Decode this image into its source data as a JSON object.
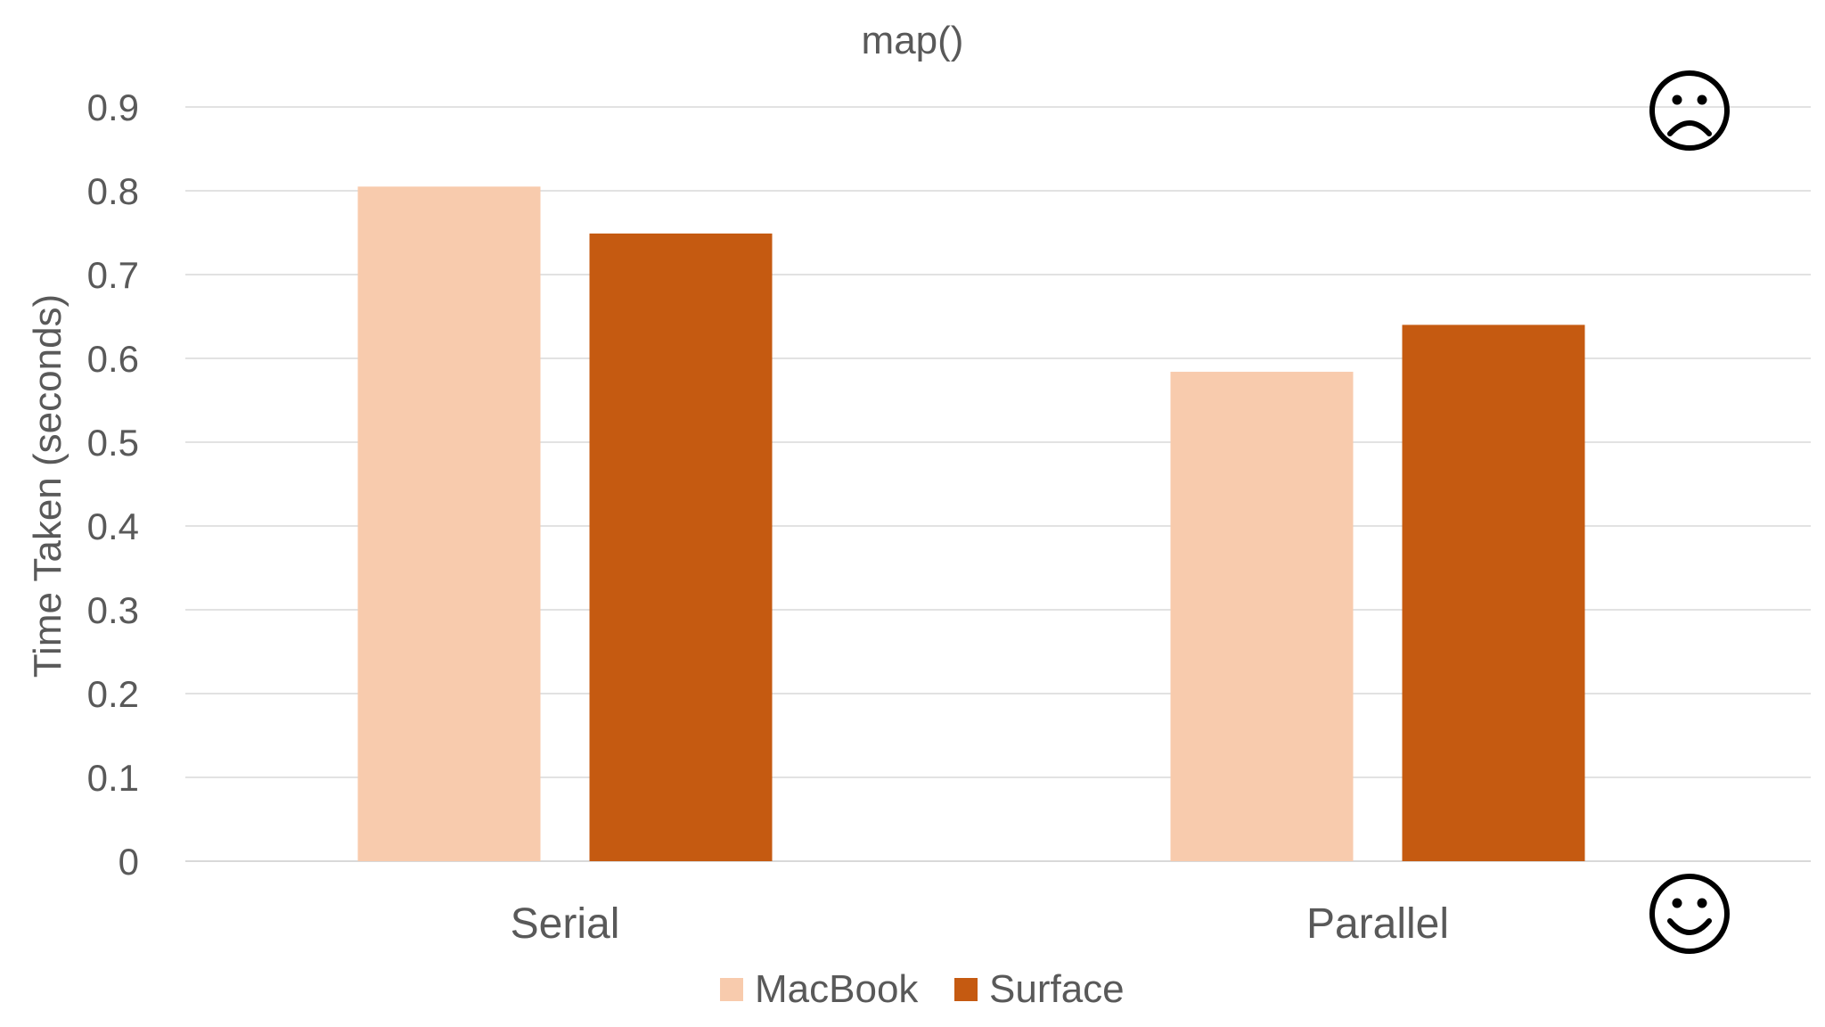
{
  "chart_data": {
    "type": "bar",
    "title": "map()",
    "ylabel": "Time Taken (seconds)",
    "xlabel": "",
    "categories": [
      "Serial",
      "Parallel"
    ],
    "series": [
      {
        "name": "MacBook",
        "color": "#f8cbad",
        "values": [
          0.805,
          0.584
        ]
      },
      {
        "name": "Surface",
        "color": "#c55a11",
        "values": [
          0.749,
          0.64
        ]
      }
    ],
    "ylim": [
      0,
      0.9
    ],
    "yticks": [
      0,
      0.1,
      0.2,
      0.3,
      0.4,
      0.5,
      0.6,
      0.7,
      0.8,
      0.9
    ],
    "grid": true,
    "legend_position": "bottom",
    "annotations": [
      {
        "icon": "frown-icon",
        "glyph": "☹",
        "anchor": "top-right"
      },
      {
        "icon": "smile-icon",
        "glyph": "☺",
        "anchor": "bottom-right"
      }
    ]
  }
}
